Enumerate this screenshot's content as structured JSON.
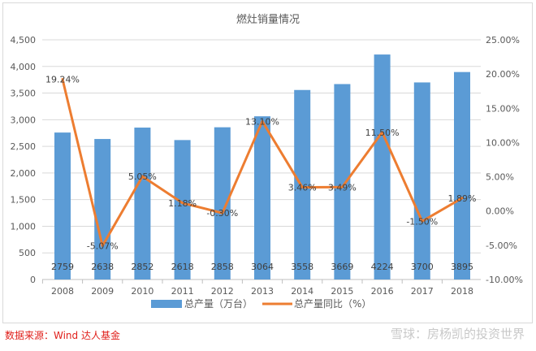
{
  "chart_data": {
    "type": "bar+line",
    "title": "燃灶销量情况",
    "categories": [
      "2008",
      "2009",
      "2010",
      "2011",
      "2012",
      "2013",
      "2014",
      "2015",
      "2016",
      "2017",
      "2018"
    ],
    "series": [
      {
        "name": "总产量（万台）",
        "type": "bar",
        "axis": "left",
        "color": "#5b9bd5",
        "values": [
          2759,
          2638,
          2852,
          2618,
          2858,
          3064,
          3558,
          3669,
          4224,
          3700,
          3895
        ],
        "labels": [
          "2759",
          "2638",
          "2852",
          "2618",
          "2858",
          "3064",
          "3558",
          "3669",
          "4224",
          "3700",
          "3895"
        ]
      },
      {
        "name": "总产量同比（%）",
        "type": "line",
        "axis": "right",
        "color": "#ed7d31",
        "values": [
          19.24,
          -5.07,
          5.05,
          1.18,
          -0.3,
          13.1,
          3.46,
          3.49,
          11.5,
          -1.5,
          1.89
        ],
        "labels": [
          "19.24%",
          "-5.07%",
          "5.05%",
          "1.18%",
          "-0.30%",
          "13.10%",
          "3.46%",
          "3.49%",
          "11.50%",
          "-1.50%",
          "1.89%"
        ]
      }
    ],
    "left_axis": {
      "range": [
        0,
        4500
      ],
      "ticks": [
        "0",
        "500",
        "1,000",
        "1,500",
        "2,000",
        "2,500",
        "3,000",
        "3,500",
        "4,000",
        "4,500"
      ]
    },
    "right_axis": {
      "range": [
        -10,
        25
      ],
      "ticks": [
        "-10.00%",
        "-5.00%",
        "0.00%",
        "5.00%",
        "10.00%",
        "15.00%",
        "20.00%",
        "25.00%"
      ]
    },
    "grid": true,
    "legend": "bottom"
  },
  "footer": {
    "source": "数据来源：Wind  达人基金",
    "watermark": "雪球：房杨凯的投资世界"
  }
}
